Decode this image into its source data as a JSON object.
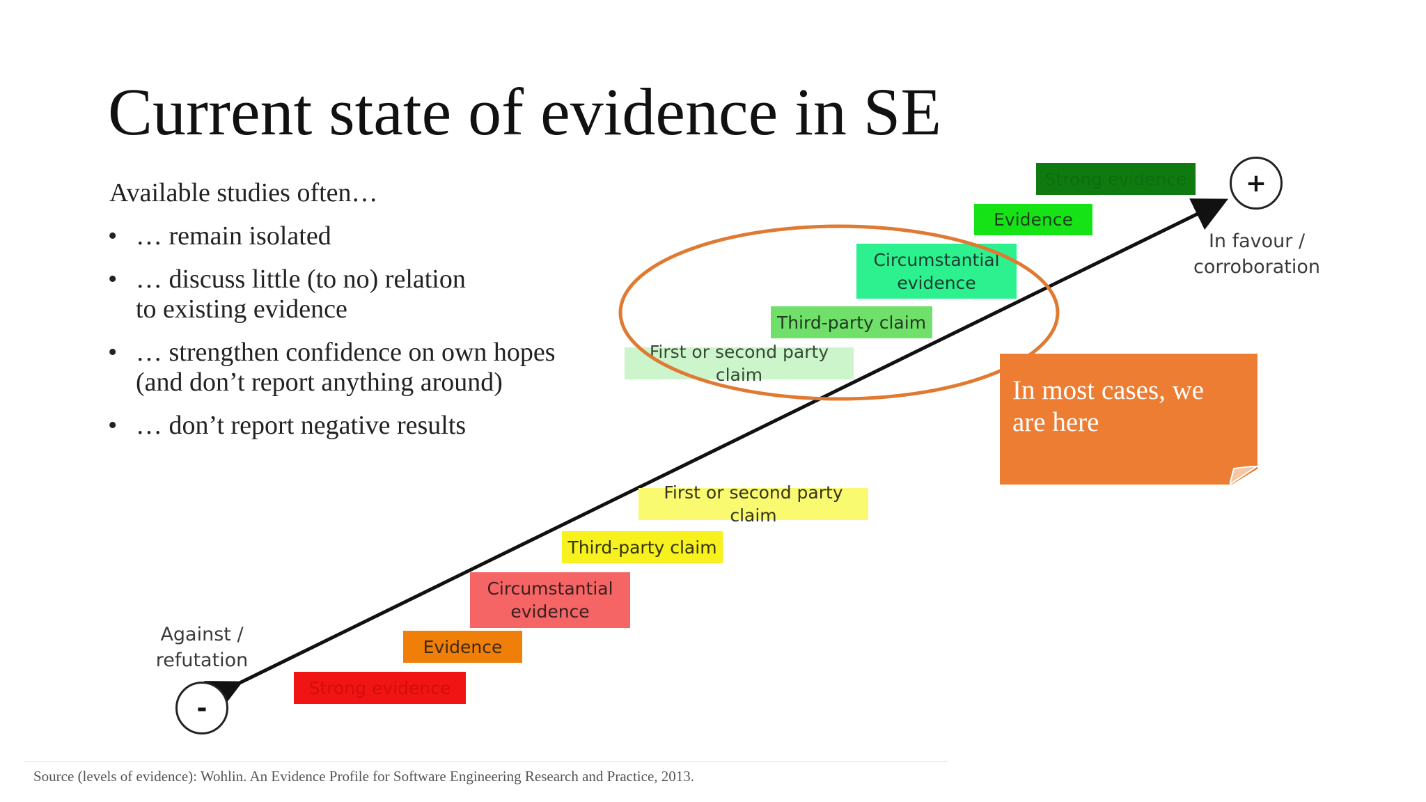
{
  "title": "Current state of evidence in SE",
  "intro": "Available studies often…",
  "bullets": [
    "… remain isolated",
    "… discuss little (to no) relation\nto existing evidence",
    "… strengthen confidence on own hopes\n(and don’t report anything around)",
    "… don’t report negative results"
  ],
  "axis": {
    "positive_symbol": "+",
    "negative_symbol": "-",
    "positive_label": "In favour /\ncorroboration",
    "negative_label": "Against /\nrefutation"
  },
  "favour_levels": [
    {
      "label": "Strong evidence",
      "color": "#0f7a0f",
      "text_color": "#0d6e0d"
    },
    {
      "label": "Evidence",
      "color": "#16e316",
      "text_color": "#1c3d1c"
    },
    {
      "label": "Circumstantial\nevidence",
      "color": "#2df08f",
      "text_color": "#1e3d2e"
    },
    {
      "label": "Third-party claim",
      "color": "#70e06a",
      "text_color": "#1f3a1f"
    },
    {
      "label": "First or second party claim",
      "color": "#ccf5cc",
      "text_color": "#334a33"
    }
  ],
  "against_levels": [
    {
      "label": "Strong evidence",
      "color": "#f01414",
      "text_color": "#d40d0d"
    },
    {
      "label": "Evidence",
      "color": "#f07f0a",
      "text_color": "#3d2a10"
    },
    {
      "label": "Circumstantial\nevidence",
      "color": "#f56565",
      "text_color": "#3a1f1f"
    },
    {
      "label": "Third-party claim",
      "color": "#f7f21e",
      "text_color": "#33330f"
    },
    {
      "label": "First or second party claim",
      "color": "#fafa70",
      "text_color": "#333320"
    }
  ],
  "callout": "In most cases, we\nare here",
  "highlight_color": "#e07a32",
  "source": "Source (levels of evidence): Wohlin.  An Evidence Profile for Software Engineering Research and Practice, 2013."
}
